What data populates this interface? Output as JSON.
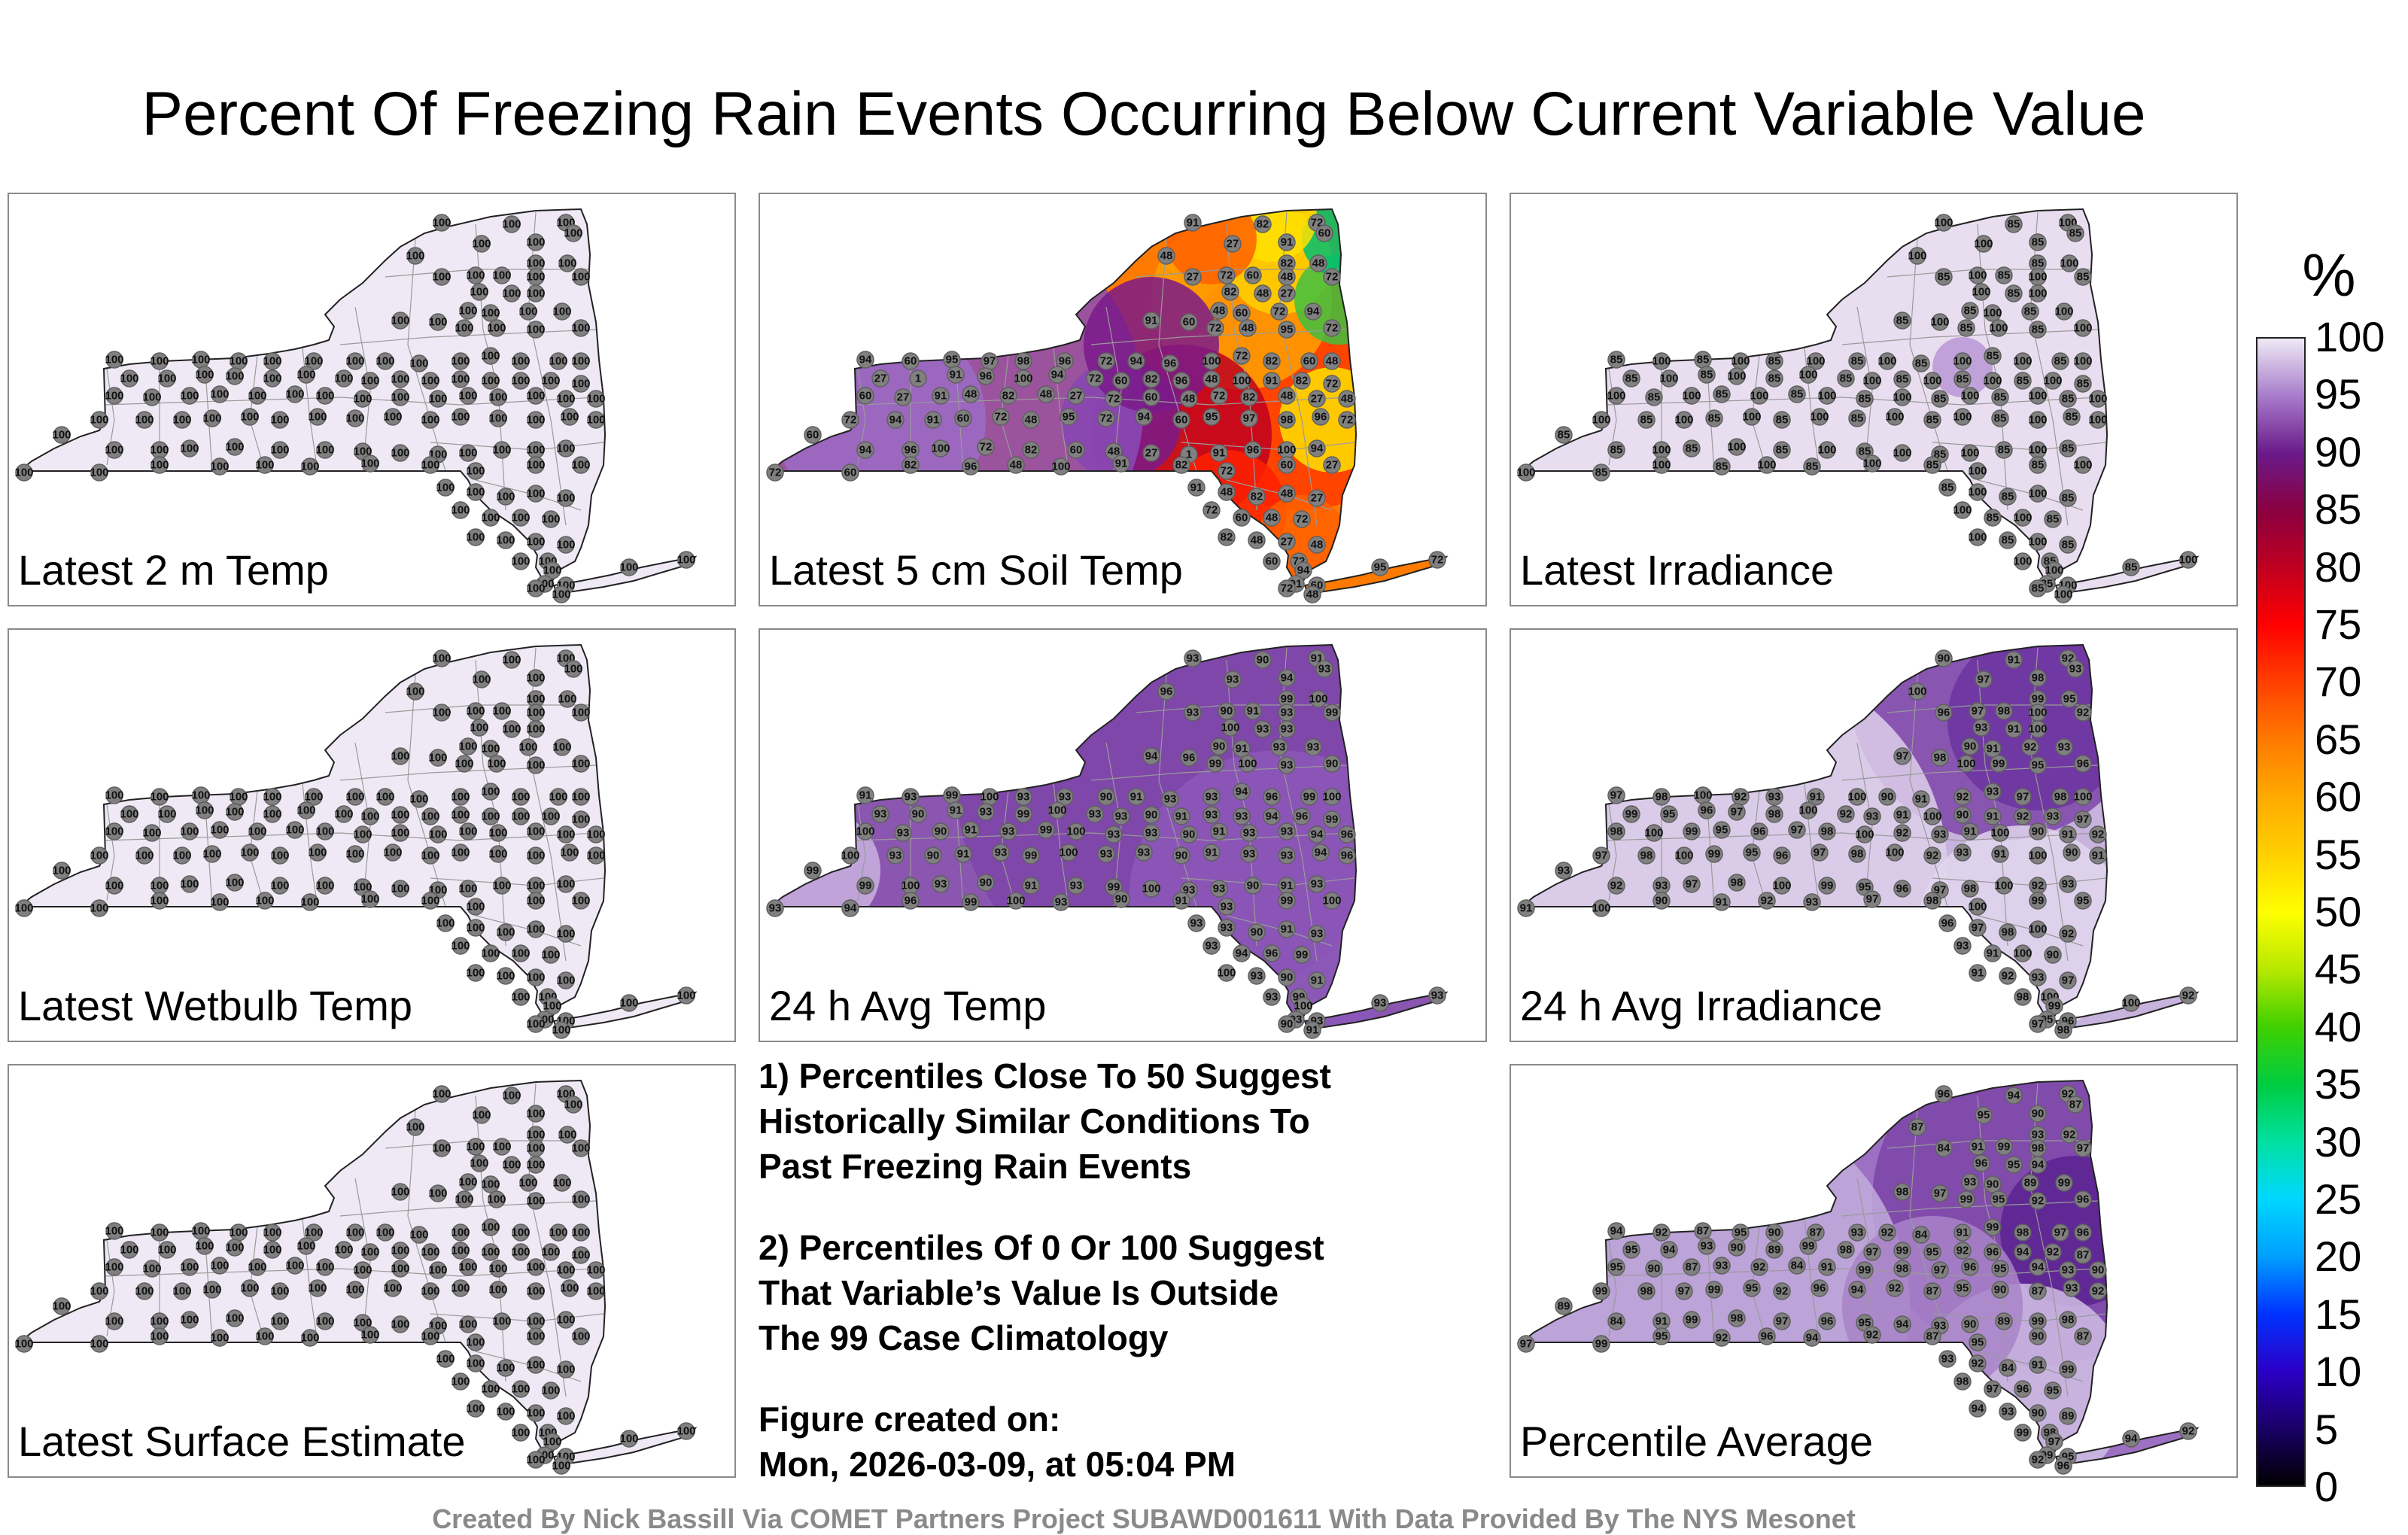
{
  "title": "Percent Of Freezing Rain Events Occurring Below Current Variable Value",
  "panels": [
    {
      "label": "Latest 2 m Temp",
      "fill": "#efe9f5",
      "values": [
        "100"
      ]
    },
    {
      "label": "Latest 5 cm Soil Temp",
      "fill": "#ff7a00",
      "values": [
        "91",
        "82",
        "72",
        "60",
        "27",
        "91",
        "48",
        "82",
        "48",
        "27",
        "72",
        "60",
        "48",
        "72",
        "82",
        "48",
        "27",
        "48",
        "60",
        "72",
        "94",
        "91",
        "60",
        "72",
        "48",
        "95",
        "72",
        "94",
        "60",
        "95",
        "97",
        "98",
        "96",
        "72",
        "94",
        "96",
        "100",
        "72",
        "82",
        "60",
        "48",
        "27",
        "1",
        "91",
        "96",
        "100",
        "94",
        "72",
        "60",
        "82",
        "96",
        "48",
        "100"
      ]
    },
    {
      "label": "Latest Irradiance",
      "fill": "#e8deef",
      "values": [
        "100",
        "85"
      ]
    },
    {
      "label": "Latest Wetbulb Temp",
      "fill": "#efe9f5",
      "values": [
        "100"
      ]
    },
    {
      "label": "24 h Avg Temp",
      "fill": "#8a56b0",
      "values": [
        "93",
        "90",
        "91",
        "93",
        "93",
        "94",
        "96",
        "99",
        "100",
        "93",
        "90",
        "91",
        "93",
        "99",
        "100",
        "93"
      ]
    },
    {
      "label": "24 h Avg Irradiance",
      "fill": "#c7b3dd",
      "values": [
        "90",
        "91",
        "92",
        "93",
        "97",
        "98",
        "100",
        "99",
        "95",
        "96",
        "97",
        "98",
        "100",
        "92",
        "93",
        "91",
        "100"
      ]
    },
    {
      "label": "Latest Surface Estimate",
      "fill": "#efe9f5",
      "values": [
        "100"
      ]
    },
    {
      "label": "Percentile Average",
      "fill": "#9c70c2",
      "values": [
        "96",
        "94",
        "92",
        "87",
        "95",
        "90",
        "87",
        "93",
        "92",
        "84",
        "91",
        "99",
        "98",
        "97",
        "96",
        "95",
        "94",
        "93",
        "90",
        "89",
        "99",
        "98",
        "97",
        "99",
        "95",
        "92"
      ]
    }
  ],
  "notes": {
    "line1": "1) Percentiles Close To 50 Suggest",
    "line2": "Historically Similar Conditions To",
    "line3": "Past Freezing Rain Events",
    "line4": "2) Percentiles Of 0 Or 100 Suggest",
    "line5": "That Variable’s Value Is Outside",
    "line6": "The 99 Case Climatology",
    "created_label": "Figure created on:",
    "created_value": "Mon, 2026-03-09, at 05:04 PM"
  },
  "legend": {
    "unit": "%",
    "ticks": [
      "100",
      "95",
      "90",
      "85",
      "80",
      "75",
      "70",
      "65",
      "60",
      "55",
      "50",
      "45",
      "40",
      "35",
      "30",
      "25",
      "20",
      "15",
      "10",
      "5",
      "0"
    ],
    "colors": [
      "#000000",
      "#1a0066",
      "#2a00c8",
      "#0033ff",
      "#00a0ff",
      "#00d8ff",
      "#00e0a0",
      "#00cc40",
      "#40d000",
      "#b8e800",
      "#ffff00",
      "#ffd000",
      "#ffaa00",
      "#ff7a00",
      "#ff4000",
      "#ff0000",
      "#c00020",
      "#8a0040",
      "#6a1a8a",
      "#a87ccb",
      "#efe9f5"
    ]
  },
  "footer": "Created By Nick Bassill Via COMET Partners Project SUBAWD001611 With Data Provided By The NYS Mesonet"
}
